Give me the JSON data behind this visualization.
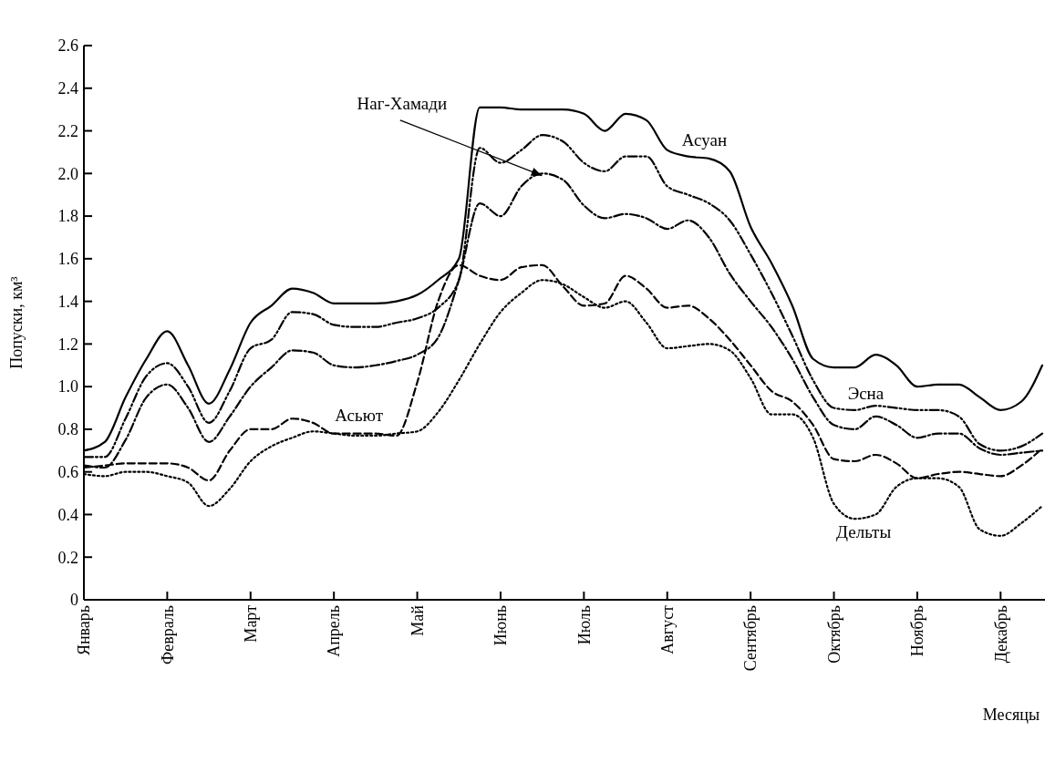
{
  "chart_data": {
    "type": "line",
    "ylabel": "Попуски, км³",
    "xlabel": "Месяцы",
    "grid": false,
    "legend": false,
    "marker": "none",
    "categories": [
      "Январь",
      null,
      null,
      null,
      "Февраль",
      null,
      null,
      null,
      "Март",
      null,
      null,
      null,
      "Апрель",
      null,
      null,
      null,
      "Май",
      null,
      null,
      null,
      "Июнь",
      null,
      null,
      null,
      "Июль",
      null,
      null,
      null,
      "Август",
      null,
      null,
      null,
      "Сентябрь",
      null,
      null,
      null,
      "Октябрь",
      null,
      null,
      null,
      "Ноябрь",
      null,
      null,
      null,
      "Декабрь",
      null,
      null
    ],
    "ylim": [
      0,
      2.6
    ],
    "yticks": [
      0,
      0.2,
      0.4,
      0.6,
      0.8,
      {
        "value": 1,
        "label": "1.0"
      },
      1.2,
      1.4,
      1.6,
      1.8,
      {
        "value": 2,
        "label": "2.0"
      },
      2.2,
      2.4,
      2.6
    ],
    "series": [
      {
        "name": "Асуан",
        "color": "#000000",
        "line_style": "solid",
        "values": [
          0.7,
          0.74,
          0.95,
          1.13,
          1.26,
          1.1,
          0.92,
          1.08,
          1.3,
          1.38,
          1.46,
          1.44,
          1.39,
          1.39,
          1.39,
          1.4,
          1.43,
          1.5,
          1.6,
          2.31,
          2.31,
          2.3,
          2.3,
          2.3,
          2.28,
          2.2,
          2.28,
          2.25,
          2.11,
          2.08,
          2.07,
          2.01,
          1.75,
          1.58,
          1.38,
          1.13,
          1.09,
          1.09,
          1.15,
          1.1,
          1.0,
          1.01,
          1.01,
          0.95,
          0.89,
          0.93,
          1.1
        ]
      },
      {
        "name": "Эсна",
        "color": "#000000",
        "line_style": "dashdotdot",
        "values": [
          0.67,
          0.67,
          0.85,
          1.05,
          1.11,
          1.0,
          0.83,
          0.98,
          1.18,
          1.22,
          1.35,
          1.34,
          1.29,
          1.28,
          1.28,
          1.3,
          1.32,
          1.37,
          1.5,
          2.12,
          2.05,
          2.11,
          2.18,
          2.15,
          2.05,
          2.01,
          2.08,
          2.08,
          1.94,
          1.9,
          1.86,
          1.78,
          1.62,
          1.44,
          1.24,
          1.03,
          0.9,
          0.89,
          0.91,
          0.9,
          0.89,
          0.89,
          0.86,
          0.73,
          0.7,
          0.72,
          0.78
        ]
      },
      {
        "name": "Наг-Хамади",
        "color": "#000000",
        "line_style": "dashdot",
        "values": [
          0.63,
          0.62,
          0.75,
          0.95,
          1.01,
          0.9,
          0.74,
          0.86,
          1.0,
          1.09,
          1.17,
          1.16,
          1.1,
          1.09,
          1.1,
          1.12,
          1.15,
          1.23,
          1.5,
          1.86,
          1.8,
          1.94,
          2.0,
          1.97,
          1.85,
          1.79,
          1.81,
          1.79,
          1.74,
          1.78,
          1.7,
          1.53,
          1.4,
          1.28,
          1.13,
          0.95,
          0.82,
          0.8,
          0.86,
          0.82,
          0.76,
          0.78,
          0.78,
          0.71,
          0.68,
          0.69,
          0.7
        ]
      },
      {
        "name": "Асьют",
        "color": "#000000",
        "line_style": "dashed",
        "values": [
          0.62,
          0.63,
          0.64,
          0.64,
          0.64,
          0.62,
          0.56,
          0.7,
          0.8,
          0.8,
          0.85,
          0.83,
          0.78,
          0.78,
          0.78,
          0.77,
          1.02,
          1.4,
          1.57,
          1.52,
          1.5,
          1.56,
          1.57,
          1.47,
          1.38,
          1.39,
          1.52,
          1.46,
          1.37,
          1.38,
          1.32,
          1.22,
          1.1,
          0.98,
          0.93,
          0.82,
          0.66,
          0.65,
          0.68,
          0.64,
          0.57,
          0.59,
          0.6,
          0.59,
          0.58,
          0.63,
          0.71
        ]
      },
      {
        "name": "Дельты",
        "color": "#000000",
        "line_style": "dotted",
        "values": [
          0.59,
          0.58,
          0.6,
          0.6,
          0.58,
          0.55,
          0.44,
          0.52,
          0.65,
          0.72,
          0.76,
          0.79,
          0.78,
          0.77,
          0.77,
          0.78,
          0.79,
          0.88,
          1.03,
          1.2,
          1.35,
          1.44,
          1.5,
          1.48,
          1.42,
          1.37,
          1.4,
          1.3,
          1.18,
          1.19,
          1.2,
          1.17,
          1.04,
          0.87,
          0.87,
          0.76,
          0.45,
          0.38,
          0.4,
          0.53,
          0.57,
          0.57,
          0.53,
          0.33,
          0.3,
          0.36,
          0.44
        ]
      }
    ]
  }
}
